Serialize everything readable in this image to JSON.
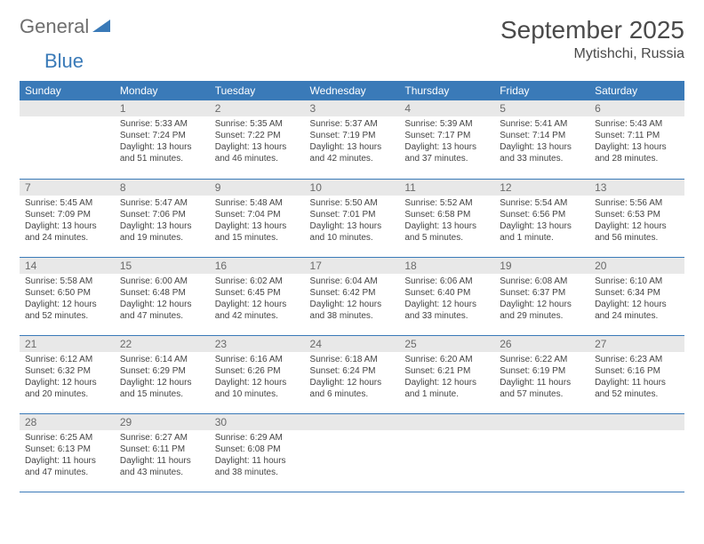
{
  "logo": {
    "text1": "General",
    "text2": "Blue",
    "color_gray": "#6e6e6e",
    "color_blue": "#3a7ab8"
  },
  "title": "September 2025",
  "location": "Mytishchi, Russia",
  "colors": {
    "header_bg": "#3a7ab8",
    "header_text": "#ffffff",
    "daynum_bg": "#e8e8e8",
    "border": "#3a7ab8",
    "body_text": "#444444"
  },
  "typography": {
    "title_fontsize": 28,
    "subtitle_fontsize": 16,
    "th_fontsize": 12,
    "cell_fontsize": 10
  },
  "day_headers": [
    "Sunday",
    "Monday",
    "Tuesday",
    "Wednesday",
    "Thursday",
    "Friday",
    "Saturday"
  ],
  "weeks": [
    [
      null,
      {
        "n": "1",
        "sunrise": "Sunrise: 5:33 AM",
        "sunset": "Sunset: 7:24 PM",
        "daylight": "Daylight: 13 hours and 51 minutes."
      },
      {
        "n": "2",
        "sunrise": "Sunrise: 5:35 AM",
        "sunset": "Sunset: 7:22 PM",
        "daylight": "Daylight: 13 hours and 46 minutes."
      },
      {
        "n": "3",
        "sunrise": "Sunrise: 5:37 AM",
        "sunset": "Sunset: 7:19 PM",
        "daylight": "Daylight: 13 hours and 42 minutes."
      },
      {
        "n": "4",
        "sunrise": "Sunrise: 5:39 AM",
        "sunset": "Sunset: 7:17 PM",
        "daylight": "Daylight: 13 hours and 37 minutes."
      },
      {
        "n": "5",
        "sunrise": "Sunrise: 5:41 AM",
        "sunset": "Sunset: 7:14 PM",
        "daylight": "Daylight: 13 hours and 33 minutes."
      },
      {
        "n": "6",
        "sunrise": "Sunrise: 5:43 AM",
        "sunset": "Sunset: 7:11 PM",
        "daylight": "Daylight: 13 hours and 28 minutes."
      }
    ],
    [
      {
        "n": "7",
        "sunrise": "Sunrise: 5:45 AM",
        "sunset": "Sunset: 7:09 PM",
        "daylight": "Daylight: 13 hours and 24 minutes."
      },
      {
        "n": "8",
        "sunrise": "Sunrise: 5:47 AM",
        "sunset": "Sunset: 7:06 PM",
        "daylight": "Daylight: 13 hours and 19 minutes."
      },
      {
        "n": "9",
        "sunrise": "Sunrise: 5:48 AM",
        "sunset": "Sunset: 7:04 PM",
        "daylight": "Daylight: 13 hours and 15 minutes."
      },
      {
        "n": "10",
        "sunrise": "Sunrise: 5:50 AM",
        "sunset": "Sunset: 7:01 PM",
        "daylight": "Daylight: 13 hours and 10 minutes."
      },
      {
        "n": "11",
        "sunrise": "Sunrise: 5:52 AM",
        "sunset": "Sunset: 6:58 PM",
        "daylight": "Daylight: 13 hours and 5 minutes."
      },
      {
        "n": "12",
        "sunrise": "Sunrise: 5:54 AM",
        "sunset": "Sunset: 6:56 PM",
        "daylight": "Daylight: 13 hours and 1 minute."
      },
      {
        "n": "13",
        "sunrise": "Sunrise: 5:56 AM",
        "sunset": "Sunset: 6:53 PM",
        "daylight": "Daylight: 12 hours and 56 minutes."
      }
    ],
    [
      {
        "n": "14",
        "sunrise": "Sunrise: 5:58 AM",
        "sunset": "Sunset: 6:50 PM",
        "daylight": "Daylight: 12 hours and 52 minutes."
      },
      {
        "n": "15",
        "sunrise": "Sunrise: 6:00 AM",
        "sunset": "Sunset: 6:48 PM",
        "daylight": "Daylight: 12 hours and 47 minutes."
      },
      {
        "n": "16",
        "sunrise": "Sunrise: 6:02 AM",
        "sunset": "Sunset: 6:45 PM",
        "daylight": "Daylight: 12 hours and 42 minutes."
      },
      {
        "n": "17",
        "sunrise": "Sunrise: 6:04 AM",
        "sunset": "Sunset: 6:42 PM",
        "daylight": "Daylight: 12 hours and 38 minutes."
      },
      {
        "n": "18",
        "sunrise": "Sunrise: 6:06 AM",
        "sunset": "Sunset: 6:40 PM",
        "daylight": "Daylight: 12 hours and 33 minutes."
      },
      {
        "n": "19",
        "sunrise": "Sunrise: 6:08 AM",
        "sunset": "Sunset: 6:37 PM",
        "daylight": "Daylight: 12 hours and 29 minutes."
      },
      {
        "n": "20",
        "sunrise": "Sunrise: 6:10 AM",
        "sunset": "Sunset: 6:34 PM",
        "daylight": "Daylight: 12 hours and 24 minutes."
      }
    ],
    [
      {
        "n": "21",
        "sunrise": "Sunrise: 6:12 AM",
        "sunset": "Sunset: 6:32 PM",
        "daylight": "Daylight: 12 hours and 20 minutes."
      },
      {
        "n": "22",
        "sunrise": "Sunrise: 6:14 AM",
        "sunset": "Sunset: 6:29 PM",
        "daylight": "Daylight: 12 hours and 15 minutes."
      },
      {
        "n": "23",
        "sunrise": "Sunrise: 6:16 AM",
        "sunset": "Sunset: 6:26 PM",
        "daylight": "Daylight: 12 hours and 10 minutes."
      },
      {
        "n": "24",
        "sunrise": "Sunrise: 6:18 AM",
        "sunset": "Sunset: 6:24 PM",
        "daylight": "Daylight: 12 hours and 6 minutes."
      },
      {
        "n": "25",
        "sunrise": "Sunrise: 6:20 AM",
        "sunset": "Sunset: 6:21 PM",
        "daylight": "Daylight: 12 hours and 1 minute."
      },
      {
        "n": "26",
        "sunrise": "Sunrise: 6:22 AM",
        "sunset": "Sunset: 6:19 PM",
        "daylight": "Daylight: 11 hours and 57 minutes."
      },
      {
        "n": "27",
        "sunrise": "Sunrise: 6:23 AM",
        "sunset": "Sunset: 6:16 PM",
        "daylight": "Daylight: 11 hours and 52 minutes."
      }
    ],
    [
      {
        "n": "28",
        "sunrise": "Sunrise: 6:25 AM",
        "sunset": "Sunset: 6:13 PM",
        "daylight": "Daylight: 11 hours and 47 minutes."
      },
      {
        "n": "29",
        "sunrise": "Sunrise: 6:27 AM",
        "sunset": "Sunset: 6:11 PM",
        "daylight": "Daylight: 11 hours and 43 minutes."
      },
      {
        "n": "30",
        "sunrise": "Sunrise: 6:29 AM",
        "sunset": "Sunset: 6:08 PM",
        "daylight": "Daylight: 11 hours and 38 minutes."
      },
      null,
      null,
      null,
      null
    ]
  ]
}
